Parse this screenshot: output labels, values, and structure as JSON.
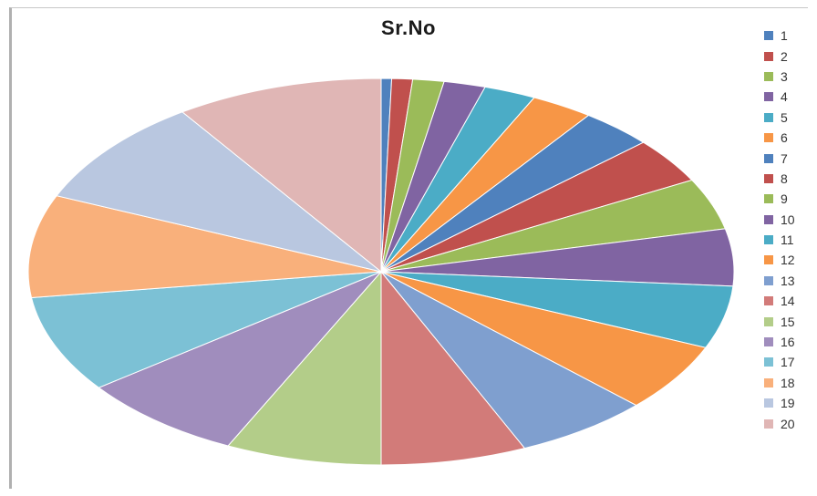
{
  "chart_data": {
    "type": "pie",
    "title": "Sr.No",
    "categories": [
      "1",
      "2",
      "3",
      "4",
      "5",
      "6",
      "7",
      "8",
      "9",
      "10",
      "11",
      "12",
      "13",
      "14",
      "15",
      "16",
      "17",
      "18",
      "19",
      "20"
    ],
    "values": [
      1,
      2,
      3,
      4,
      5,
      6,
      7,
      8,
      9,
      10,
      11,
      12,
      13,
      14,
      15,
      16,
      17,
      18,
      19,
      20
    ],
    "colors": [
      "#4F81BD",
      "#C0504D",
      "#9BBB59",
      "#8064A2",
      "#4BACC6",
      "#F79646",
      "#4F81BD",
      "#C0504D",
      "#9BBB59",
      "#8064A2",
      "#4BACC6",
      "#F79646",
      "#7F9FCF",
      "#D27B79",
      "#B3CD89",
      "#A08DBD",
      "#7CC1D5",
      "#F9B07B",
      "#B9C7E0",
      "#E0B6B5"
    ],
    "legend_position": "right"
  }
}
